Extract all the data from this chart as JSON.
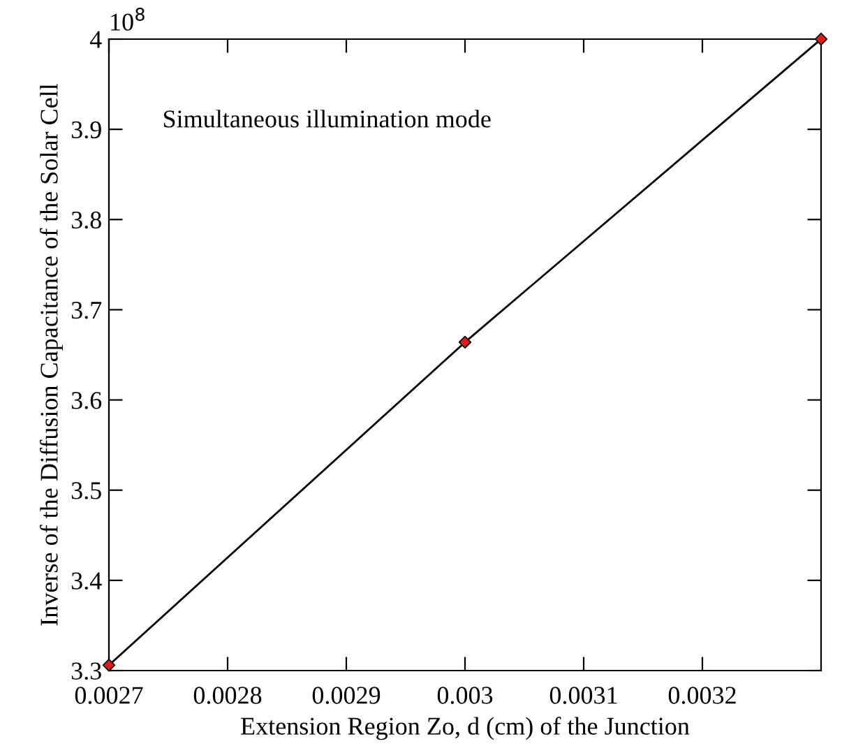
{
  "chart_data": {
    "type": "line",
    "xlabel": "Extension Region Zo, d (cm) of the Junction",
    "ylabel": "Inverse of the Diffusion Capacitance of the Solar Cell",
    "annotations": [
      "10$^{8}$",
      "Simultaneous illumination mode"
    ],
    "x": [
      0.0027,
      0.003,
      0.0033
    ],
    "series": [
      {
        "color": "#000000",
        "colors": [
          "#d62020",
          "#d62020",
          "#d62020"
        ],
        "values": [
          3.306,
          3.664,
          4.0
        ]
      }
    ],
    "xlim": [
      0.0027,
      0.0033
    ],
    "xticks": [
      0.0027,
      0.0028,
      0.0029,
      0.003,
      0.0031,
      0.0032
    ],
    "ylim": [
      3.3,
      4.0
    ],
    "yticks": [
      3.3,
      3.4,
      3.5,
      3.6,
      3.7,
      3.8,
      3.9,
      4
    ],
    "marker": "diamond",
    "line_style": "solid",
    "grid": false,
    "legend": false
  }
}
